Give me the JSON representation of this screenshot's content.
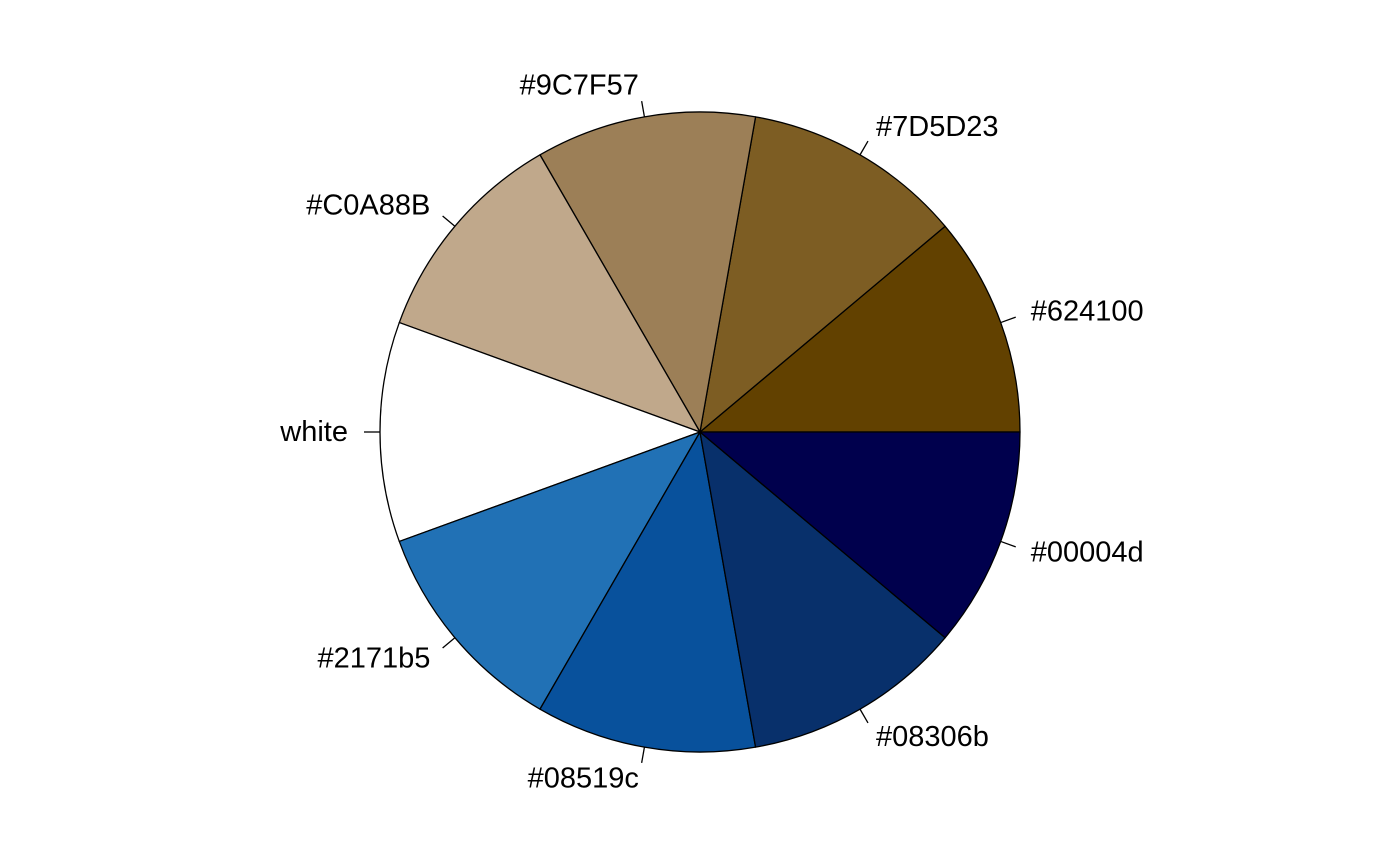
{
  "chart_data": {
    "type": "pie",
    "title": "",
    "start_angle_deg": 0,
    "direction": "counterclockwise",
    "border_color": "#000000",
    "slices": [
      {
        "label": "#624100",
        "value": 1,
        "color": "#624100"
      },
      {
        "label": "#7D5D23",
        "value": 1,
        "color": "#7D5D23"
      },
      {
        "label": "#9C7F57",
        "value": 1,
        "color": "#9C7F57"
      },
      {
        "label": "#C0A88B",
        "value": 1,
        "color": "#C0A88B"
      },
      {
        "label": "white",
        "value": 1,
        "color": "#FFFFFF"
      },
      {
        "label": "#2171b5",
        "value": 1,
        "color": "#2171b5"
      },
      {
        "label": "#08519c",
        "value": 1,
        "color": "#08519c"
      },
      {
        "label": "#08306b",
        "value": 1,
        "color": "#08306b"
      },
      {
        "label": "#00004d",
        "value": 1,
        "color": "#00004d"
      }
    ]
  }
}
